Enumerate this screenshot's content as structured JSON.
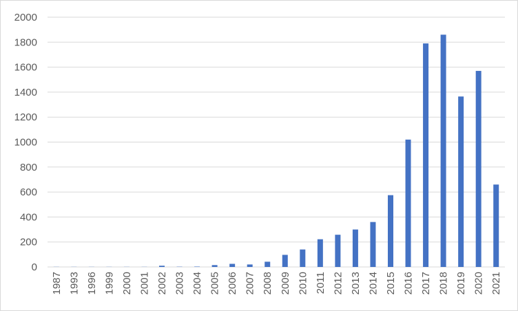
{
  "chart_data": {
    "type": "bar",
    "title": "",
    "xlabel": "",
    "ylabel": "",
    "categories": [
      "1987",
      "1993",
      "1996",
      "1999",
      "2000",
      "2001",
      "2002",
      "2003",
      "2004",
      "2005",
      "2006",
      "2007",
      "2008",
      "2009",
      "2010",
      "2011",
      "2012",
      "2013",
      "2014",
      "2015",
      "2016",
      "2017",
      "2018",
      "2019",
      "2020",
      "2021"
    ],
    "values": [
      1,
      1,
      1,
      1,
      1,
      1,
      10,
      2,
      3,
      15,
      25,
      20,
      42,
      97,
      140,
      222,
      258,
      300,
      360,
      575,
      1020,
      1790,
      1860,
      1365,
      1570,
      660
    ],
    "ylim": [
      0,
      2000
    ],
    "yticks": [
      0,
      200,
      400,
      600,
      800,
      1000,
      1200,
      1400,
      1600,
      1800,
      2000
    ],
    "grid": true,
    "legend": "none",
    "bar_color": "#4472c4"
  }
}
